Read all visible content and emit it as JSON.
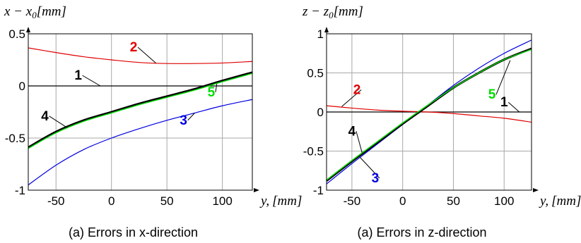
{
  "chart_data": [
    {
      "type": "line",
      "caption": "(a) Errors in x-direction",
      "ylabel": "x − x₀, [mm]",
      "ylabel_parts": {
        "var": "x − x",
        "sub": "0",
        "unit": "[mm]"
      },
      "xlabel": "y, [mm]",
      "xlabel_parts": {
        "var": "y,",
        "unit": "[mm]"
      },
      "xlim": [
        -75,
        127
      ],
      "ylim": [
        -1,
        0.5
      ],
      "xticks": [
        -50,
        0,
        50,
        100
      ],
      "xtick_labels": [
        "-50",
        "0",
        "50",
        "100"
      ],
      "yticks": [
        -1,
        -0.5,
        0,
        0.5
      ],
      "ytick_labels": [
        "-1",
        "-0.5",
        "0",
        "0.5"
      ],
      "grid": true,
      "series": [
        {
          "name": "1",
          "color": "#000000",
          "x": [
            -75,
            127
          ],
          "y": [
            0,
            0
          ]
        },
        {
          "name": "2",
          "color": "#e00000",
          "x": [
            -75,
            -50,
            -25,
            0,
            25,
            50,
            75,
            100,
            127
          ],
          "y": [
            0.365,
            0.32,
            0.28,
            0.25,
            0.225,
            0.215,
            0.215,
            0.22,
            0.235
          ]
        },
        {
          "name": "3",
          "color": "#0000e0",
          "x": [
            -75,
            -50,
            -25,
            0,
            25,
            50,
            75,
            100,
            127
          ],
          "y": [
            -0.95,
            -0.76,
            -0.61,
            -0.5,
            -0.41,
            -0.33,
            -0.26,
            -0.19,
            -0.13
          ]
        },
        {
          "name": "4",
          "color": "#000000",
          "x": [
            -75,
            -50,
            -25,
            0,
            25,
            50,
            75,
            100,
            127
          ],
          "y": [
            -0.59,
            -0.44,
            -0.33,
            -0.25,
            -0.17,
            -0.1,
            -0.03,
            0.05,
            0.13
          ]
        },
        {
          "name": "5",
          "color": "#00dd00",
          "x": [
            -75,
            -50,
            -25,
            0,
            25,
            50,
            75,
            100,
            127
          ],
          "y": [
            -0.6,
            -0.45,
            -0.34,
            -0.26,
            -0.18,
            -0.11,
            -0.04,
            0.04,
            0.12
          ]
        }
      ],
      "annotations": [
        {
          "text": "1",
          "color": "#000000",
          "at": [
            -30,
            0.06
          ],
          "target": [
            -10,
            0
          ]
        },
        {
          "text": "2",
          "color": "#e00000",
          "at": [
            20,
            0.33
          ],
          "target": [
            40,
            0.22
          ]
        },
        {
          "text": "3",
          "color": "#0000e0",
          "at": [
            65,
            -0.37
          ],
          "target": [
            75,
            -0.26
          ]
        },
        {
          "text": "4",
          "color": "#000000",
          "at": [
            -60,
            -0.33
          ],
          "target": [
            -40,
            -0.4
          ]
        },
        {
          "text": "5",
          "color": "#00dd00",
          "at": [
            90,
            -0.1
          ],
          "target": [
            95,
            0.02
          ]
        }
      ]
    },
    {
      "type": "line",
      "caption": "(a) Errors in z-direction",
      "ylabel": "z − z₀, [mm]",
      "ylabel_parts": {
        "var": "z − z",
        "sub": "0",
        "unit": "[mm]"
      },
      "xlabel": "y, [mm]",
      "xlabel_parts": {
        "var": "y,",
        "unit": "[mm]"
      },
      "xlim": [
        -75,
        127
      ],
      "ylim": [
        -1,
        1
      ],
      "xticks": [
        -50,
        0,
        50,
        100
      ],
      "xtick_labels": [
        "-50",
        "0",
        "50",
        "100"
      ],
      "yticks": [
        -1,
        -0.5,
        0,
        0.5,
        1
      ],
      "ytick_labels": [
        "-1",
        "-0.5",
        "0",
        "0.5",
        "1"
      ],
      "grid": true,
      "series": [
        {
          "name": "1",
          "color": "#000000",
          "x": [
            -75,
            127
          ],
          "y": [
            0,
            0
          ]
        },
        {
          "name": "2",
          "color": "#e00000",
          "x": [
            -75,
            -50,
            -25,
            0,
            25,
            50,
            75,
            100,
            127
          ],
          "y": [
            0.08,
            0.05,
            0.025,
            0.01,
            0,
            -0.02,
            -0.05,
            -0.08,
            -0.13
          ]
        },
        {
          "name": "3",
          "color": "#0000e0",
          "x": [
            -75,
            -50,
            -25,
            0,
            25,
            50,
            75,
            100,
            127
          ],
          "y": [
            -0.92,
            -0.66,
            -0.41,
            -0.16,
            0.09,
            0.34,
            0.56,
            0.75,
            0.92
          ]
        },
        {
          "name": "4",
          "color": "#000000",
          "x": [
            -75,
            -50,
            -25,
            0,
            25,
            50,
            75,
            100,
            127
          ],
          "y": [
            -0.88,
            -0.63,
            -0.39,
            -0.15,
            0.08,
            0.31,
            0.5,
            0.67,
            0.81
          ]
        },
        {
          "name": "5",
          "color": "#00dd00",
          "x": [
            -75,
            -50,
            -25,
            0,
            25,
            50,
            75,
            100,
            127
          ],
          "y": [
            -0.87,
            -0.62,
            -0.38,
            -0.14,
            0.09,
            0.31,
            0.5,
            0.67,
            0.8
          ]
        }
      ],
      "annotations": [
        {
          "text": "1",
          "color": "#000000",
          "at": [
            100,
            0.07
          ],
          "target": [
            115,
            0
          ]
        },
        {
          "text": "2",
          "color": "#e00000",
          "at": [
            -45,
            0.23
          ],
          "target": [
            -60,
            0.07
          ]
        },
        {
          "text": "3",
          "color": "#0000e0",
          "at": [
            -27,
            -0.9
          ],
          "target": [
            -42,
            -0.58
          ]
        },
        {
          "text": "4",
          "color": "#000000",
          "at": [
            -50,
            -0.3
          ],
          "target": [
            -40,
            -0.52
          ]
        },
        {
          "text": "5",
          "color": "#00dd00",
          "at": [
            88,
            0.17
          ],
          "target": [
            106,
            0.66
          ]
        }
      ]
    }
  ]
}
